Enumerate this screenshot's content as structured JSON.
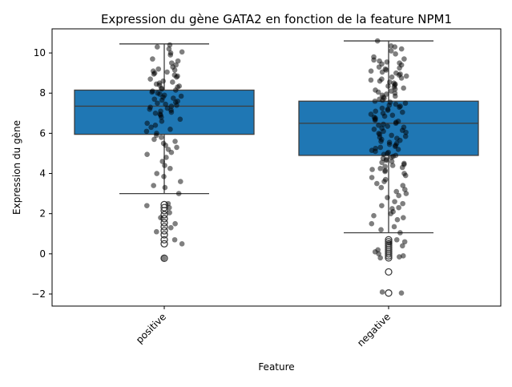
{
  "chart_data": {
    "type": "box",
    "title": "Expression du gène GATA2 en fonction de la feature NPM1",
    "xlabel": "Feature",
    "ylabel": "Expression du gène",
    "ylim": [
      -2.6,
      11.2
    ],
    "yticks": [
      -2,
      0,
      2,
      4,
      6,
      8,
      10
    ],
    "ytick_labels": [
      "−2",
      "0",
      "2",
      "4",
      "6",
      "8",
      "10"
    ],
    "categories": [
      "positive",
      "negative"
    ],
    "box_color": "#1f77b4",
    "line_color": "#3d3d3d",
    "point_color": "#000000",
    "boxes": [
      {
        "category": "positive",
        "q1": 5.95,
        "median": 7.35,
        "q3": 8.15,
        "whisker_low": 3.0,
        "whisker_high": 10.45,
        "outliers": [
          2.45,
          2.3,
          2.15,
          1.95,
          1.75,
          1.55,
          1.35,
          1.15,
          0.95,
          0.7,
          0.5,
          -0.22
        ]
      },
      {
        "category": "negative",
        "q1": 4.9,
        "median": 6.5,
        "q3": 7.6,
        "whisker_low": 1.05,
        "whisker_high": 10.6,
        "outliers": [
          0.7,
          0.6,
          0.5,
          0.4,
          0.3,
          0.2,
          0.1,
          0.0,
          -0.1,
          -0.2,
          -0.9,
          -1.95
        ]
      }
    ],
    "points": [
      {
        "category": "positive",
        "y": [
          10.4,
          10.3,
          10.2,
          10.05,
          10.0,
          9.9,
          9.7,
          9.6,
          9.5,
          9.4,
          9.3,
          9.2,
          9.15,
          9.1,
          9.05,
          9.0,
          8.95,
          8.9,
          8.85,
          8.8,
          8.7,
          8.6,
          8.55,
          8.5,
          8.45,
          8.4,
          8.35,
          8.3,
          8.25,
          8.2,
          8.15,
          8.1,
          8.05,
          8.0,
          7.95,
          7.9,
          7.85,
          7.8,
          7.75,
          7.7,
          7.65,
          7.6,
          7.55,
          7.5,
          7.45,
          7.4,
          7.35,
          7.3,
          7.25,
          7.2,
          7.15,
          7.1,
          7.05,
          7.0,
          6.95,
          6.9,
          6.8,
          6.7,
          6.6,
          6.5,
          6.4,
          6.3,
          6.2,
          6.1,
          6.0,
          5.9,
          5.8,
          5.7,
          5.6,
          5.5,
          5.4,
          5.3,
          5.2,
          5.05,
          4.95,
          4.8,
          4.6,
          4.4,
          4.25,
          4.0,
          3.85,
          3.6,
          3.4,
          3.3,
          3.0,
          2.5,
          2.4,
          2.3,
          2.05,
          1.8,
          1.5,
          1.3,
          1.1,
          0.7,
          0.5,
          -0.22
        ]
      },
      {
        "category": "negative",
        "y": [
          10.6,
          10.35,
          10.3,
          10.2,
          10.1,
          9.95,
          9.8,
          9.7,
          9.65,
          9.6,
          9.55,
          9.5,
          9.45,
          9.4,
          9.3,
          9.25,
          9.2,
          9.15,
          9.1,
          9.05,
          9.0,
          8.95,
          8.9,
          8.85,
          8.8,
          8.75,
          8.7,
          8.65,
          8.6,
          8.55,
          8.5,
          8.45,
          8.4,
          8.35,
          8.3,
          8.25,
          8.2,
          8.15,
          8.1,
          8.05,
          8.0,
          7.95,
          7.9,
          7.85,
          7.8,
          7.75,
          7.7,
          7.65,
          7.6,
          7.55,
          7.5,
          7.45,
          7.4,
          7.35,
          7.3,
          7.25,
          7.2,
          7.15,
          7.1,
          7.05,
          7.0,
          6.95,
          6.9,
          6.85,
          6.8,
          6.75,
          6.7,
          6.65,
          6.6,
          6.55,
          6.5,
          6.45,
          6.4,
          6.35,
          6.3,
          6.25,
          6.2,
          6.15,
          6.1,
          6.05,
          6.0,
          5.95,
          5.9,
          5.85,
          5.8,
          5.75,
          5.7,
          5.65,
          5.6,
          5.55,
          5.5,
          5.45,
          5.4,
          5.35,
          5.3,
          5.25,
          5.2,
          5.15,
          5.1,
          5.05,
          5.0,
          4.95,
          4.9,
          4.85,
          4.8,
          4.75,
          4.7,
          4.65,
          4.6,
          4.55,
          4.5,
          4.45,
          4.4,
          4.35,
          4.3,
          4.25,
          4.2,
          4.15,
          4.1,
          4.0,
          3.9,
          3.8,
          3.7,
          3.6,
          3.5,
          3.4,
          3.3,
          3.2,
          3.1,
          3.0,
          2.9,
          2.8,
          2.6,
          2.5,
          2.4,
          2.3,
          2.25,
          2.1,
          2.0,
          1.9,
          1.8,
          1.7,
          1.5,
          1.35,
          1.2,
          1.05,
          0.7,
          0.6,
          0.55,
          0.4,
          0.2,
          0.1,
          0.0,
          -0.1,
          -0.15,
          -0.2,
          -1.9,
          -1.95
        ]
      }
    ]
  }
}
